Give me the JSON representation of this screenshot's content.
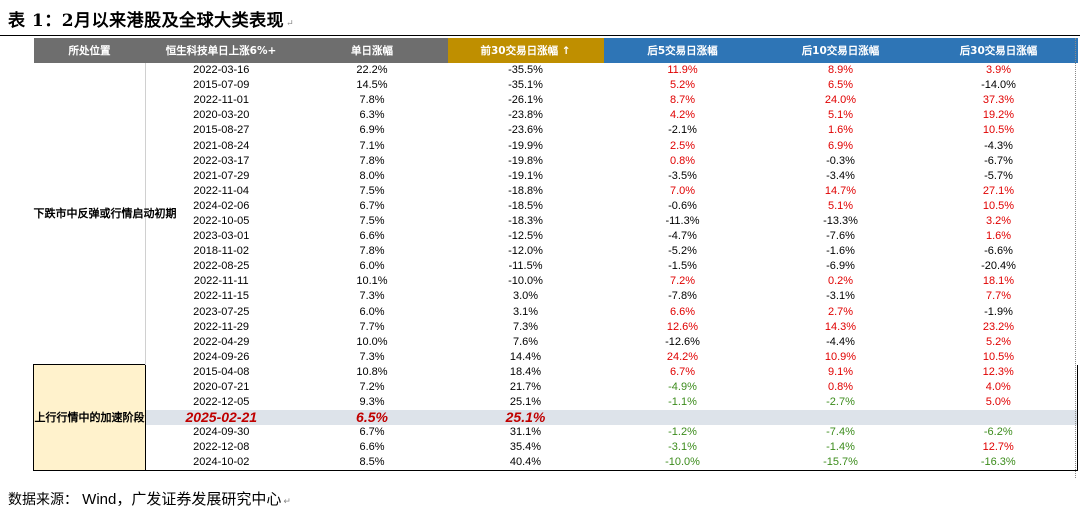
{
  "title": "表 1：2月以来港股及全球大类表现",
  "headers": [
    "所处位置",
    "恒生科技单日上涨6%+",
    "单日涨幅",
    "前30交易日涨幅 ↑",
    "后5交易日涨幅",
    "后10交易日涨幅",
    "后30交易日涨幅"
  ],
  "stages": {
    "stage1": "下跌市中反弹或行情启动初期",
    "stage2": "上行行情中的加速阶段"
  },
  "colors": {
    "up": "#e00000",
    "down": "#3c8c1c",
    "header_grey": "#6e6e6e",
    "header_gold": "#bf8f00",
    "header_blue": "#2e75b6",
    "stage2_bg": "#fff2cc",
    "highlight_bg": "#dde3ea"
  },
  "rows_stage1": [
    [
      "2022-03-16",
      "22.2%",
      "-35.5%",
      "11.9%",
      "8.9%",
      "3.9%"
    ],
    [
      "2015-07-09",
      "14.5%",
      "-35.1%",
      "5.2%",
      "6.5%",
      "-14.0%"
    ],
    [
      "2022-11-01",
      "7.8%",
      "-26.1%",
      "8.7%",
      "24.0%",
      "37.3%"
    ],
    [
      "2020-03-20",
      "6.3%",
      "-23.8%",
      "4.2%",
      "5.1%",
      "19.2%"
    ],
    [
      "2015-08-27",
      "6.9%",
      "-23.6%",
      "-2.1%",
      "1.6%",
      "10.5%"
    ],
    [
      "2021-08-24",
      "7.1%",
      "-19.9%",
      "2.5%",
      "6.9%",
      "-4.3%"
    ],
    [
      "2022-03-17",
      "7.8%",
      "-19.8%",
      "0.8%",
      "-0.3%",
      "-6.7%"
    ],
    [
      "2021-07-29",
      "8.0%",
      "-19.1%",
      "-3.5%",
      "-3.4%",
      "-5.7%"
    ],
    [
      "2022-11-04",
      "7.5%",
      "-18.8%",
      "7.0%",
      "14.7%",
      "27.1%"
    ],
    [
      "2024-02-06",
      "6.7%",
      "-18.5%",
      "-0.6%",
      "5.1%",
      "10.5%"
    ],
    [
      "2022-10-05",
      "7.5%",
      "-18.3%",
      "-11.3%",
      "-13.3%",
      "3.2%"
    ],
    [
      "2023-03-01",
      "6.6%",
      "-12.5%",
      "-4.7%",
      "-7.6%",
      "1.6%"
    ],
    [
      "2018-11-02",
      "7.8%",
      "-12.0%",
      "-5.2%",
      "-1.6%",
      "-6.6%"
    ],
    [
      "2022-08-25",
      "6.0%",
      "-11.5%",
      "-1.5%",
      "-6.9%",
      "-20.4%"
    ],
    [
      "2022-11-11",
      "10.1%",
      "-10.0%",
      "7.2%",
      "0.2%",
      "18.1%"
    ],
    [
      "2022-11-15",
      "7.3%",
      "3.0%",
      "-7.8%",
      "-3.1%",
      "7.7%"
    ],
    [
      "2023-07-25",
      "6.0%",
      "3.1%",
      "6.6%",
      "2.7%",
      "-1.9%"
    ],
    [
      "2022-11-29",
      "7.7%",
      "7.3%",
      "12.6%",
      "14.3%",
      "23.2%"
    ],
    [
      "2022-04-29",
      "10.0%",
      "7.6%",
      "-12.6%",
      "-4.4%",
      "5.2%"
    ],
    [
      "2024-09-26",
      "7.3%",
      "14.4%",
      "24.2%",
      "10.9%",
      "10.5%"
    ]
  ],
  "colors_stage1": [
    [
      "red",
      "red",
      "red"
    ],
    [
      "red",
      "red",
      "black"
    ],
    [
      "red",
      "red",
      "red"
    ],
    [
      "red",
      "red",
      "red"
    ],
    [
      "black",
      "red",
      "red"
    ],
    [
      "red",
      "red",
      "black"
    ],
    [
      "red",
      "black",
      "black"
    ],
    [
      "black",
      "black",
      "black"
    ],
    [
      "red",
      "red",
      "red"
    ],
    [
      "black",
      "red",
      "red"
    ],
    [
      "black",
      "black",
      "red"
    ],
    [
      "black",
      "black",
      "red"
    ],
    [
      "black",
      "black",
      "black"
    ],
    [
      "black",
      "black",
      "black"
    ],
    [
      "red",
      "red",
      "red"
    ],
    [
      "black",
      "black",
      "red"
    ],
    [
      "red",
      "red",
      "black"
    ],
    [
      "red",
      "red",
      "red"
    ],
    [
      "black",
      "black",
      "red"
    ],
    [
      "red",
      "red",
      "red"
    ]
  ],
  "rows_stage2": [
    [
      "2015-04-08",
      "10.8%",
      "18.4%",
      "6.7%",
      "9.1%",
      "12.3%"
    ],
    [
      "2020-07-21",
      "7.2%",
      "21.7%",
      "-4.9%",
      "0.8%",
      "4.0%"
    ],
    [
      "2022-12-05",
      "9.3%",
      "25.1%",
      "-1.1%",
      "-2.7%",
      "5.0%"
    ],
    [
      "2025-02-21",
      "6.5%",
      "25.1%",
      "",
      "",
      ""
    ],
    [
      "2024-09-30",
      "6.7%",
      "31.1%",
      "-1.2%",
      "-7.4%",
      "-6.2%"
    ],
    [
      "2022-12-08",
      "6.6%",
      "35.4%",
      "-3.1%",
      "-1.4%",
      "12.7%"
    ],
    [
      "2024-10-02",
      "8.5%",
      "40.4%",
      "-10.0%",
      "-15.7%",
      "-16.3%"
    ]
  ],
  "colors_stage2": [
    [
      "red",
      "red",
      "red"
    ],
    [
      "green",
      "red",
      "red"
    ],
    [
      "green",
      "green",
      "red"
    ],
    [
      "black",
      "black",
      "black"
    ],
    [
      "green",
      "green",
      "green"
    ],
    [
      "green",
      "green",
      "red"
    ],
    [
      "green",
      "green",
      "green"
    ]
  ],
  "source": {
    "label": "数据来源：",
    "text": "Wind，广发证券发展研究中心"
  }
}
